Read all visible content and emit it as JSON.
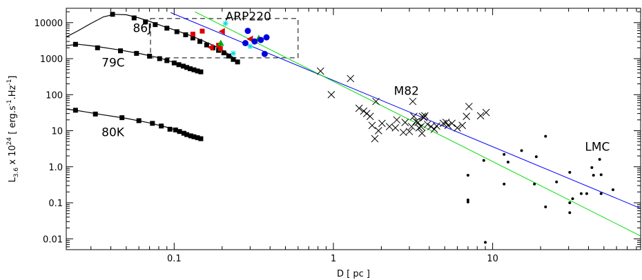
{
  "chart_data": {
    "type": "scatter",
    "title": "",
    "xlabel": "D [ pc ]",
    "ylabel": {
      "pre": "L",
      "sub": "3.6",
      "mid": " x 10",
      "sup": "24",
      "post": "  [ erg.s",
      "sup2": "-1",
      "post2": ".Hz",
      "sup3": "-1",
      "post3": "]"
    },
    "xscale": "log",
    "yscale": "log",
    "xlim": [
      0.021,
      85
    ],
    "ylim": [
      0.005,
      25000
    ],
    "x_ticks": [
      {
        "v": 0.1,
        "label": "0.1"
      },
      {
        "v": 1,
        "label": "1"
      },
      {
        "v": 10,
        "label": "10"
      }
    ],
    "y_ticks": [
      {
        "v": 0.01,
        "label": "0.01"
      },
      {
        "v": 0.1,
        "label": "0.1"
      },
      {
        "v": 1,
        "label": "1.0"
      },
      {
        "v": 10,
        "label": "10"
      },
      {
        "v": 100,
        "label": "100"
      },
      {
        "v": 1000,
        "label": "1000"
      },
      {
        "v": 10000,
        "label": "10000"
      }
    ],
    "annotations": [
      {
        "text": "86J",
        "x": 0.055,
        "y": 5500
      },
      {
        "text": "79C",
        "x": 0.035,
        "y": 600
      },
      {
        "text": "80K",
        "x": 0.035,
        "y": 7
      },
      {
        "text": "ARP220",
        "x": 0.21,
        "y": 11500
      },
      {
        "text": "M82",
        "x": 2.4,
        "y": 100
      },
      {
        "text": "LMC",
        "x": 38,
        "y": 2.8
      }
    ],
    "box": {
      "x": [
        0.071,
        0.6
      ],
      "y": [
        1050,
        13000
      ]
    },
    "fit_lines": [
      {
        "color": "#0000ff",
        "points": [
          [
            0.095,
            19000
          ],
          [
            85,
            0.07
          ]
        ]
      },
      {
        "color": "#00dd00",
        "points": [
          [
            0.135,
            20000
          ],
          [
            85,
            0.012
          ]
        ]
      }
    ],
    "series": [
      {
        "marker": "square",
        "color": "#000000",
        "points": [
          [
            0.041,
            17000
          ],
          [
            0.056,
            13500
          ],
          [
            0.066,
            10500
          ],
          [
            0.076,
            8800
          ],
          [
            0.09,
            7000
          ],
          [
            0.104,
            5600
          ],
          [
            0.118,
            4600
          ],
          [
            0.131,
            3750
          ],
          [
            0.145,
            3000
          ],
          [
            0.16,
            2400
          ],
          [
            0.175,
            2000
          ],
          [
            0.19,
            1700
          ],
          [
            0.205,
            1450
          ],
          [
            0.22,
            1180
          ],
          [
            0.235,
            950
          ],
          [
            0.25,
            810
          ]
        ]
      },
      {
        "marker": "square",
        "color": "#000000",
        "points": [
          [
            0.024,
            2500
          ],
          [
            0.033,
            2000
          ],
          [
            0.046,
            1650
          ],
          [
            0.058,
            1400
          ],
          [
            0.07,
            1170
          ],
          [
            0.081,
            1000
          ],
          [
            0.09,
            880
          ],
          [
            0.1,
            760
          ],
          [
            0.107,
            680
          ],
          [
            0.114,
            620
          ],
          [
            0.12,
            570
          ],
          [
            0.126,
            525
          ],
          [
            0.133,
            490
          ],
          [
            0.14,
            455
          ],
          [
            0.147,
            430
          ]
        ]
      },
      {
        "marker": "square",
        "color": "#000000",
        "points": [
          [
            0.024,
            37
          ],
          [
            0.032,
            29
          ],
          [
            0.047,
            23
          ],
          [
            0.06,
            19
          ],
          [
            0.073,
            16
          ],
          [
            0.083,
            13.5
          ],
          [
            0.094,
            11
          ],
          [
            0.102,
            10.5
          ],
          [
            0.108,
            9.5
          ],
          [
            0.115,
            8.5
          ],
          [
            0.12,
            7.8
          ],
          [
            0.127,
            7.2
          ],
          [
            0.133,
            6.8
          ],
          [
            0.14,
            6.4
          ],
          [
            0.147,
            6.0
          ]
        ]
      },
      {
        "marker": "square",
        "color": "#dd0000",
        "points": [
          [
            0.131,
            4800
          ],
          [
            0.15,
            5800
          ],
          [
            0.19,
            2350
          ],
          [
            0.195,
            1900
          ]
        ]
      },
      {
        "marker": "triangle-left",
        "color": "#dd0000",
        "points": [
          [
            0.17,
            2050
          ],
          [
            0.2,
            5700
          ],
          [
            0.3,
            3500
          ]
        ]
      },
      {
        "marker": "triangle-up",
        "color": "#00aa00",
        "points": [
          [
            0.196,
            2700
          ],
          [
            0.34,
            3700
          ]
        ]
      },
      {
        "marker": "asterisk",
        "color": "#00dddd",
        "points": [
          [
            0.21,
            9500
          ],
          [
            0.235,
            1400
          ],
          [
            0.3,
            2200
          ]
        ]
      },
      {
        "marker": "circle",
        "color": "#0000dd",
        "points": [
          [
            0.29,
            5900
          ],
          [
            0.28,
            2700
          ],
          [
            0.32,
            3000
          ],
          [
            0.35,
            3300
          ],
          [
            0.37,
            1350
          ],
          [
            0.38,
            3900
          ]
        ]
      },
      {
        "marker": "x",
        "color": "#000000",
        "points": [
          [
            0.83,
            450
          ],
          [
            0.97,
            100
          ],
          [
            1.28,
            280
          ],
          [
            1.45,
            42
          ],
          [
            1.55,
            35
          ],
          [
            1.62,
            30
          ],
          [
            1.7,
            25
          ],
          [
            1.75,
            14
          ],
          [
            1.82,
            6
          ],
          [
            1.85,
            65
          ],
          [
            1.92,
            10
          ],
          [
            2.02,
            16
          ],
          [
            2.25,
            13
          ],
          [
            2.45,
            12
          ],
          [
            2.5,
            20
          ],
          [
            2.75,
            9
          ],
          [
            2.82,
            17
          ],
          [
            3.0,
            9.5
          ],
          [
            3.1,
            13
          ],
          [
            3.15,
            65
          ],
          [
            3.2,
            25
          ],
          [
            3.3,
            18
          ],
          [
            3.4,
            17
          ],
          [
            3.45,
            12
          ],
          [
            3.55,
            13
          ],
          [
            3.6,
            8.5
          ],
          [
            3.62,
            25
          ],
          [
            3.7,
            23
          ],
          [
            3.75,
            26
          ],
          [
            3.9,
            15
          ],
          [
            4.1,
            13
          ],
          [
            4.3,
            11
          ],
          [
            4.45,
            13.5
          ],
          [
            4.9,
            16
          ],
          [
            5.1,
            17
          ],
          [
            5.25,
            14
          ],
          [
            5.55,
            16
          ],
          [
            6.0,
            12
          ],
          [
            6.45,
            14
          ],
          [
            6.85,
            25
          ],
          [
            7.1,
            47
          ],
          [
            8.4,
            26
          ],
          [
            9.1,
            32
          ]
        ]
      },
      {
        "marker": "dot",
        "color": "#000000",
        "points": [
          [
            7.0,
            0.58
          ],
          [
            7.0,
            0.12
          ],
          [
            7.0,
            0.105
          ],
          [
            8.8,
            1.5
          ],
          [
            9.0,
            0.008
          ],
          [
            11.8,
            2.2
          ],
          [
            11.8,
            0.33
          ],
          [
            12.5,
            1.35
          ],
          [
            15.2,
            2.8
          ],
          [
            18.3,
            0.33
          ],
          [
            18.8,
            1.9
          ],
          [
            21.5,
            7.0
          ],
          [
            21.5,
            0.077
          ],
          [
            25.2,
            0.38
          ],
          [
            30.5,
            0.7
          ],
          [
            30.5,
            0.1
          ],
          [
            30.5,
            0.053
          ],
          [
            31.8,
            0.13
          ],
          [
            36,
            0.18
          ],
          [
            39,
            0.18
          ],
          [
            42,
            0.95
          ],
          [
            43,
            0.58
          ],
          [
            47,
            1.6
          ],
          [
            48,
            0.6
          ],
          [
            48,
            0.18
          ],
          [
            57,
            0.23
          ]
        ]
      }
    ],
    "curves": [
      {
        "color": "#000000",
        "points": [
          [
            0.021,
            4000
          ],
          [
            0.025,
            6000
          ],
          [
            0.03,
            9500
          ],
          [
            0.036,
            14500
          ],
          [
            0.042,
            17000
          ],
          [
            0.05,
            16500
          ],
          [
            0.06,
            13500
          ],
          [
            0.07,
            10800
          ],
          [
            0.085,
            8000
          ],
          [
            0.1,
            6300
          ],
          [
            0.13,
            4200
          ],
          [
            0.17,
            2500
          ],
          [
            0.2,
            1750
          ],
          [
            0.23,
            1150
          ],
          [
            0.25,
            830
          ]
        ]
      },
      {
        "color": "#000000",
        "points": [
          [
            0.021,
            2300
          ],
          [
            0.025,
            2500
          ],
          [
            0.032,
            2200
          ],
          [
            0.045,
            1750
          ],
          [
            0.06,
            1400
          ],
          [
            0.08,
            1060
          ],
          [
            0.1,
            780
          ],
          [
            0.12,
            600
          ],
          [
            0.147,
            430
          ]
        ]
      },
      {
        "color": "#000000",
        "points": [
          [
            0.021,
            40
          ],
          [
            0.025,
            36
          ],
          [
            0.035,
            28
          ],
          [
            0.05,
            22
          ],
          [
            0.07,
            16.5
          ],
          [
            0.09,
            12.5
          ],
          [
            0.11,
            9.5
          ],
          [
            0.13,
            7.3
          ],
          [
            0.147,
            6.0
          ]
        ]
      }
    ]
  }
}
